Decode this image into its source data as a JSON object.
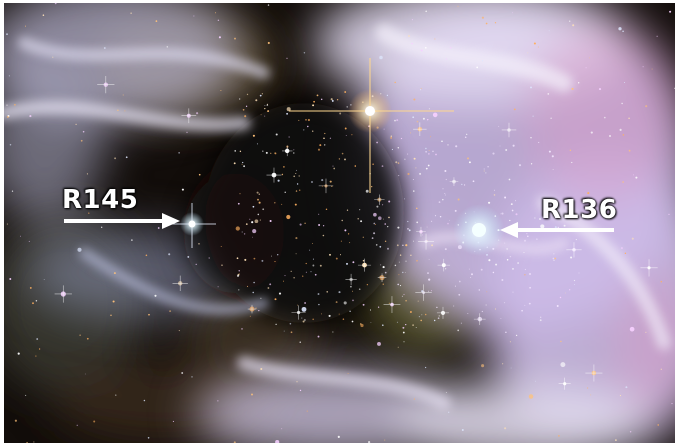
{
  "image": {
    "kind": "astronomical photograph",
    "dominant_colors": {
      "background": "#120d0a",
      "nebula_lilac": "#c9b8e6",
      "nebula_white": "#eee8f6",
      "nebula_pink": "#d79ac6",
      "dust_brown": "#5a4020",
      "star_orange": "#ffb060",
      "star_white": "#ffffff"
    }
  },
  "annotations": {
    "r145": {
      "label": "R145",
      "arrow_direction": "right"
    },
    "r136": {
      "label": "R136",
      "arrow_direction": "left"
    }
  }
}
